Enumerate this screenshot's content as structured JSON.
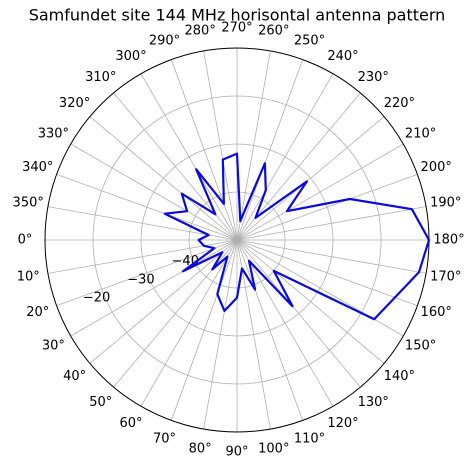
{
  "chart_data": {
    "type": "polar",
    "title": "Samfundet site 144 MHz horisontal antenna pattern",
    "theta_zero": "W",
    "theta_direction": "counterclockwise",
    "grid": true,
    "rlim": [
      -50,
      -10
    ],
    "rticks": [
      {
        "value": -40,
        "label": "−40"
      },
      {
        "value": -30,
        "label": "−30"
      },
      {
        "value": -20,
        "label": "−20"
      }
    ],
    "thetaticks": [
      {
        "value": 0,
        "label": "0°"
      },
      {
        "value": 10,
        "label": "10°"
      },
      {
        "value": 20,
        "label": "20°"
      },
      {
        "value": 30,
        "label": "30°"
      },
      {
        "value": 40,
        "label": "40°"
      },
      {
        "value": 50,
        "label": "50°"
      },
      {
        "value": 60,
        "label": "60°"
      },
      {
        "value": 70,
        "label": "70°"
      },
      {
        "value": 80,
        "label": "80°"
      },
      {
        "value": 90,
        "label": "90°"
      },
      {
        "value": 100,
        "label": "100°"
      },
      {
        "value": 110,
        "label": "110°"
      },
      {
        "value": 120,
        "label": "120°"
      },
      {
        "value": 130,
        "label": "130°"
      },
      {
        "value": 140,
        "label": "140°"
      },
      {
        "value": 150,
        "label": "150°"
      },
      {
        "value": 160,
        "label": "160°"
      },
      {
        "value": 170,
        "label": "170°"
      },
      {
        "value": 180,
        "label": "180°"
      },
      {
        "value": 190,
        "label": "190°"
      },
      {
        "value": 200,
        "label": "200°"
      },
      {
        "value": 210,
        "label": "210°"
      },
      {
        "value": 220,
        "label": "220°"
      },
      {
        "value": 230,
        "label": "230°"
      },
      {
        "value": 240,
        "label": "240°"
      },
      {
        "value": 250,
        "label": "250°"
      },
      {
        "value": 260,
        "label": "260°"
      },
      {
        "value": 270,
        "label": "270°"
      },
      {
        "value": 280,
        "label": "280°"
      },
      {
        "value": 290,
        "label": "290°"
      },
      {
        "value": 300,
        "label": "300°"
      },
      {
        "value": 310,
        "label": "310°"
      },
      {
        "value": 320,
        "label": "320°"
      },
      {
        "value": 330,
        "label": "330°"
      },
      {
        "value": 340,
        "label": "340°"
      },
      {
        "value": 350,
        "label": "350°"
      }
    ],
    "color": "#0a0ae0",
    "theta": [
      0,
      10,
      20,
      30,
      40,
      50,
      60,
      70,
      80,
      90,
      100,
      110,
      120,
      130,
      140,
      150,
      160,
      170,
      180,
      190,
      200,
      210,
      220,
      230,
      240,
      250,
      260,
      270,
      280,
      290,
      300,
      310,
      320,
      330,
      340,
      350
    ],
    "values": [
      -42,
      -43,
      -45,
      -37,
      -46,
      -42,
      -46,
      -38,
      -35,
      -38,
      -44,
      -39,
      -45,
      -32,
      -40,
      -17,
      -15,
      -11.5,
      -10,
      -13,
      -25,
      -38,
      -31,
      -44,
      -38,
      -33,
      -46,
      -32,
      -33,
      -42,
      -33,
      -43,
      -35,
      -38,
      -34,
      -44
    ]
  }
}
